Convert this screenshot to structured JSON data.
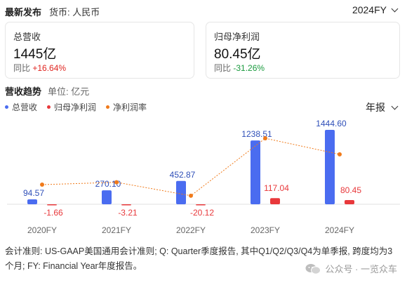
{
  "header": {
    "title": "最新发布",
    "currency": "货币: 人民币",
    "year_selected": "2024FY"
  },
  "cards": [
    {
      "label": "总营收",
      "value": "1445亿",
      "change_prefix": "同比",
      "change": "+16.64%",
      "direction": "up"
    },
    {
      "label": "归母净利润",
      "value": "80.45亿",
      "change_prefix": "同比",
      "change": "-31.26%",
      "direction": "down"
    }
  ],
  "section": {
    "title": "营收趋势",
    "unit": "单位: 亿元",
    "period_selected": "年报"
  },
  "colors": {
    "revenue": "#4a6cf0",
    "net_profit": "#e8383b",
    "margin": "#f07a1a"
  },
  "chart_data": {
    "type": "bar",
    "categories": [
      "2020FY",
      "2021FY",
      "2022FY",
      "2023FY",
      "2024FY"
    ],
    "series": [
      {
        "name": "总营收",
        "type": "bar",
        "values": [
          94.57,
          270.1,
          452.87,
          1238.51,
          1444.6
        ],
        "labels": [
          "94.57",
          "270.10",
          "452.87",
          "1238.51",
          "1444.60"
        ]
      },
      {
        "name": "归母净利润",
        "type": "bar",
        "values": [
          -1.66,
          -3.21,
          -20.12,
          117.04,
          80.45
        ],
        "labels": [
          "-1.66",
          "-3.21",
          "-20.12",
          "117.04",
          "80.45"
        ]
      },
      {
        "name": "净利润率",
        "type": "line",
        "values": [
          -1.76,
          -1.19,
          -4.44,
          9.45,
          5.57
        ]
      }
    ]
  },
  "footnote": "会计准则: US-GAAP美国通用会计准则; Q: Quarter季度报告, 其中Q1/Q2/Q3/Q4为单季报, 跨度均为3个月; FY: Financial Year年度报告。",
  "watermark": "公众号 · 一览众车"
}
